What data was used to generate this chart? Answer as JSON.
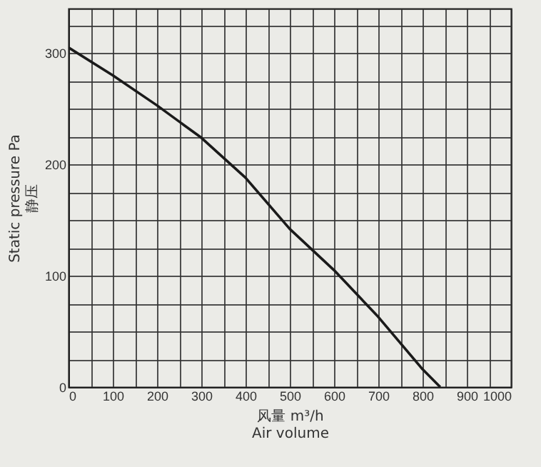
{
  "chart_data": {
    "type": "line",
    "xlabel": "风量  m³/h\nAir volume",
    "ylabel": "Static pressure  Pa\n静压",
    "x": [
      0,
      100,
      200,
      300,
      400,
      500,
      600,
      700,
      800,
      840
    ],
    "series": [
      {
        "color": "#1a1a1a",
        "values": [
          305,
          280,
          253,
          224,
          188,
          142,
          105,
          63,
          16,
          0
        ]
      }
    ],
    "xlim": [
      0,
      1000
    ],
    "ylim": [
      0,
      340
    ],
    "xticks": [
      0,
      {
        "value": 50,
        "label": null
      },
      100,
      {
        "value": 150,
        "label": null
      },
      200,
      {
        "value": 250,
        "label": null
      },
      300,
      {
        "value": 350,
        "label": null
      },
      400,
      {
        "value": 450,
        "label": null
      },
      500,
      {
        "value": 550,
        "label": null
      },
      600,
      {
        "value": 650,
        "label": null
      },
      700,
      {
        "value": 750,
        "label": null
      },
      800,
      {
        "value": 850,
        "label": null
      },
      900,
      {
        "value": 950,
        "label": null
      },
      1000
    ],
    "yticks": [
      0,
      {
        "value": 25,
        "label": null
      },
      {
        "value": 50,
        "label": null
      },
      {
        "value": 75,
        "label": null
      },
      100,
      {
        "value": 125,
        "label": null
      },
      {
        "value": 150,
        "label": null
      },
      {
        "value": 175,
        "label": null
      },
      200,
      {
        "value": 225,
        "label": null
      },
      {
        "value": 250,
        "label": null
      },
      {
        "value": 275,
        "label": null
      },
      300,
      {
        "value": 325,
        "label": null
      }
    ],
    "grid": true,
    "marker": "none",
    "line_style": "solid"
  }
}
